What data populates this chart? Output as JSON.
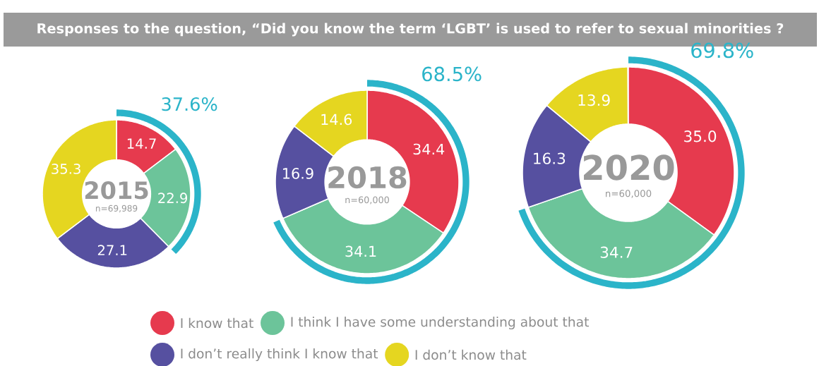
{
  "chart_data": {
    "type": "donut",
    "title": "Responses to the question, “Did you know the term ‘LGBT’ is used to refer to sexual minorities ?",
    "categories": [
      "I know that",
      "I think I have some understanding about that",
      "I don’t really think I know that",
      "I don’t know that"
    ],
    "colors": [
      "#e63a4e",
      "#6cc49a",
      "#5650a0",
      "#e5d620"
    ],
    "series": [
      {
        "name": "2015",
        "values": [
          14.7,
          22.9,
          27.1,
          35.3
        ],
        "value_labels": [
          "14.7",
          "22.9",
          "27.1",
          "35.3"
        ]
      },
      {
        "name": "2018",
        "values": [
          34.4,
          34.1,
          16.9,
          14.6
        ],
        "value_labels": [
          "34.4",
          "34.1",
          "16.9",
          "14.6"
        ]
      },
      {
        "name": "2020",
        "values": [
          35.0,
          34.7,
          16.3,
          13.9
        ],
        "value_labels": [
          "35.0",
          "34.7",
          "16.3",
          "13.9"
        ]
      }
    ],
    "annotations": [
      "n=69,989",
      "37.6%",
      "n=60,000",
      "68.5%",
      "n=60,000",
      "69.8%"
    ],
    "legend": "bottom"
  }
}
